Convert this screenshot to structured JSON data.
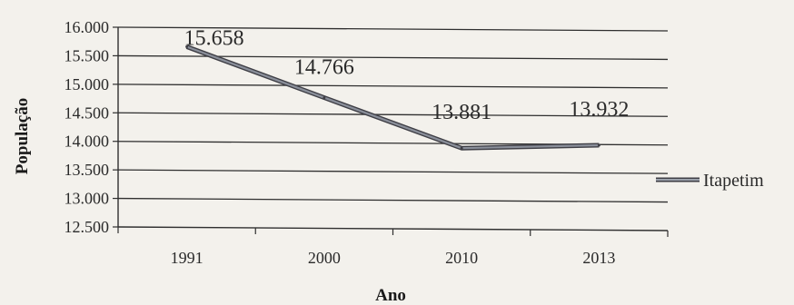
{
  "chart_data": {
    "type": "line",
    "categories": [
      "1991",
      "2000",
      "2010",
      "2013"
    ],
    "series": [
      {
        "name": "Itapetim",
        "values": [
          15658,
          14766,
          13881,
          13932
        ]
      }
    ],
    "data_labels": [
      "15.658",
      "14.766",
      "13.881",
      "13.932"
    ],
    "y_ticks": [
      12500,
      13000,
      13500,
      14000,
      14500,
      15000,
      15500,
      16000
    ],
    "y_tick_labels": [
      "12.500",
      "13.000",
      "13.500",
      "14.000",
      "14.500",
      "15.000",
      "15.500",
      "16.000"
    ],
    "ylim": [
      12500,
      16000
    ],
    "xlabel": "Ano",
    "ylabel": "População",
    "grid": true,
    "legend_position": "right",
    "colors": {
      "series_line": "#8a8f9a",
      "series_line_dark": "#3f3f46",
      "grid": "#2f2f2f",
      "background": "#f3f1ec"
    }
  }
}
